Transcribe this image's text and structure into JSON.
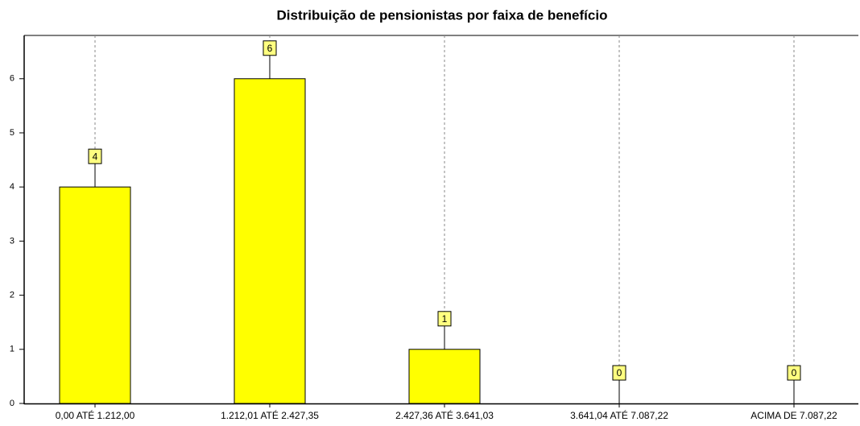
{
  "chart_data": {
    "type": "bar",
    "title": "Distribuição de pensionistas por faixa de benefício",
    "categories": [
      "0,00 ATÉ 1.212,00",
      "1.212,01 ATÉ 2.427,35",
      "2.427,36 ATÉ 3.641,03",
      "3.641,04 ATÉ 7.087,22",
      "ACIMA DE 7.087,22"
    ],
    "values": [
      4,
      6,
      1,
      0,
      0
    ],
    "color": "#ffff00",
    "ylim": [
      0,
      6.8
    ],
    "yticks": [
      0,
      1,
      2,
      3,
      4,
      5,
      6
    ],
    "grid": true
  }
}
